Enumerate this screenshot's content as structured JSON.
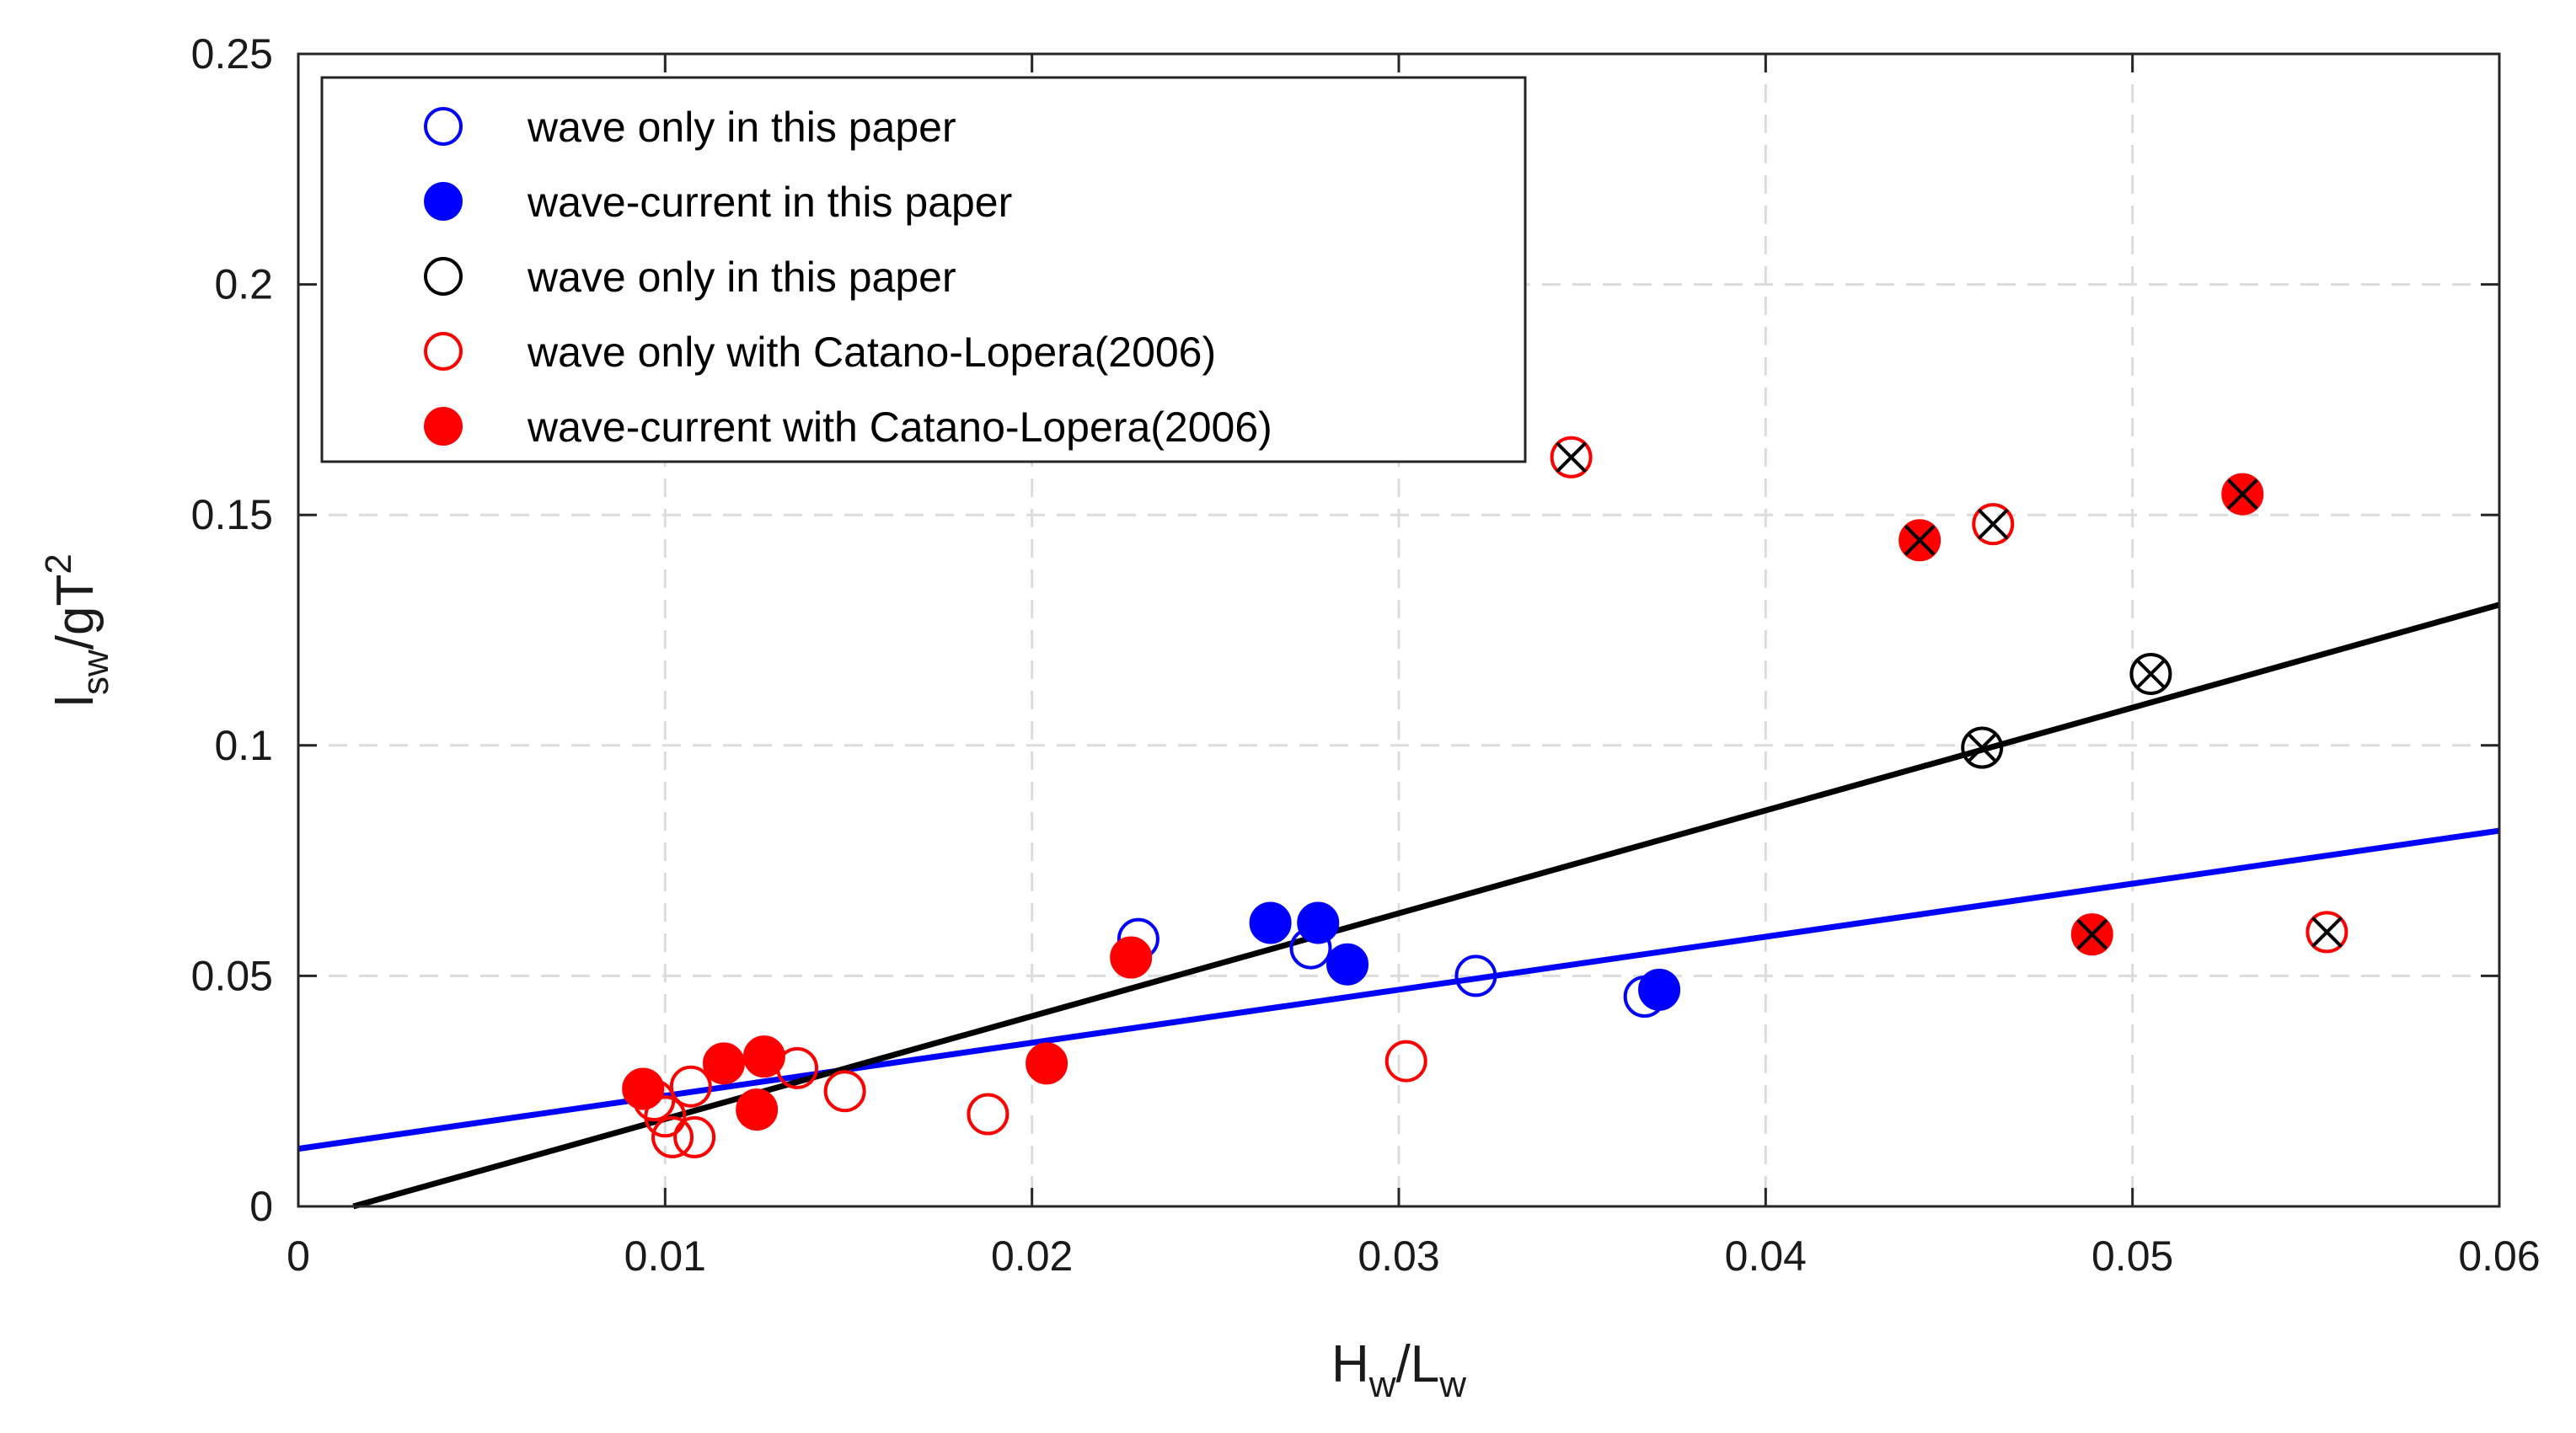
{
  "chart_data": {
    "type": "scatter",
    "title": "",
    "xlabel": {
      "main": "H",
      "sub": "w",
      "sep": "/L",
      "sub2": "w"
    },
    "ylabel": {
      "main": "l",
      "sub": "sw",
      "sep": "/gT",
      "sup": "2"
    },
    "xlim": [
      0,
      0.06
    ],
    "ylim": [
      0,
      0.25
    ],
    "xticks": [
      0,
      0.01,
      0.02,
      0.03,
      0.04,
      0.05,
      0.06
    ],
    "xtick_labels": [
      "0",
      "0.01",
      "0.02",
      "0.03",
      "0.04",
      "0.05",
      "0.06"
    ],
    "yticks": [
      0,
      0.05,
      0.1,
      0.15,
      0.2,
      0.25
    ],
    "ytick_labels": [
      "0",
      "0.05",
      "0.1",
      "0.15",
      "0.2",
      "0.25"
    ],
    "grid": true,
    "legend_position": "top-left",
    "series": [
      {
        "name": "wave only in this paper",
        "marker": "open-circle",
        "color": "#0000ff",
        "points": [
          [
            0.0229,
            0.058
          ],
          [
            0.0276,
            0.056
          ],
          [
            0.0321,
            0.05
          ],
          [
            0.0367,
            0.0455
          ]
        ]
      },
      {
        "name": "wave-current in this paper",
        "marker": "filled-circle",
        "color": "#0000ff",
        "points": [
          [
            0.0265,
            0.0615
          ],
          [
            0.0278,
            0.0615
          ],
          [
            0.0286,
            0.0525
          ],
          [
            0.0371,
            0.047
          ]
        ]
      },
      {
        "name": "wave only in this paper",
        "marker": "open-circle",
        "color": "#000000",
        "points": [
          [
            0.0459,
            0.0995
          ],
          [
            0.0505,
            0.1155
          ]
        ]
      },
      {
        "name": "wave only with Catano-Lopera(2006)",
        "marker": "open-circle",
        "color": "#ff0000",
        "points": [
          [
            0.0097,
            0.023
          ],
          [
            0.01,
            0.0195
          ],
          [
            0.0102,
            0.015
          ],
          [
            0.0107,
            0.026
          ],
          [
            0.0108,
            0.015
          ],
          [
            0.0136,
            0.03
          ],
          [
            0.0149,
            0.025
          ],
          [
            0.0188,
            0.02
          ],
          [
            0.0302,
            0.0315
          ],
          [
            0.0347,
            0.1625
          ],
          [
            0.0462,
            0.148
          ],
          [
            0.0553,
            0.0595
          ]
        ]
      },
      {
        "name": "wave-current with Catano-Lopera(2006)",
        "marker": "filled-circle",
        "color": "#ff0000",
        "points": [
          [
            0.0094,
            0.0255
          ],
          [
            0.0116,
            0.031
          ],
          [
            0.0125,
            0.021
          ],
          [
            0.0127,
            0.0325
          ],
          [
            0.0204,
            0.031
          ],
          [
            0.0227,
            0.054
          ],
          [
            0.0442,
            0.1445
          ],
          [
            0.0489,
            0.059
          ],
          [
            0.053,
            0.1545
          ]
        ]
      }
    ],
    "crossed_points": [
      [
        0.0347,
        0.1625
      ],
      [
        0.0442,
        0.1445
      ],
      [
        0.0462,
        0.148
      ],
      [
        0.0459,
        0.0995
      ],
      [
        0.0505,
        0.1155
      ],
      [
        0.0489,
        0.059
      ],
      [
        0.053,
        0.1545
      ],
      [
        0.0553,
        0.0595
      ]
    ],
    "fit_lines": [
      {
        "name": "blue fit",
        "color": "#0000ff",
        "x": [
          0,
          0.06
        ],
        "y": [
          0.0125,
          0.0815
        ]
      },
      {
        "name": "black fit",
        "color": "#000000",
        "x": [
          0.0015,
          0.06
        ],
        "y": [
          0.0,
          0.1305
        ]
      }
    ]
  }
}
